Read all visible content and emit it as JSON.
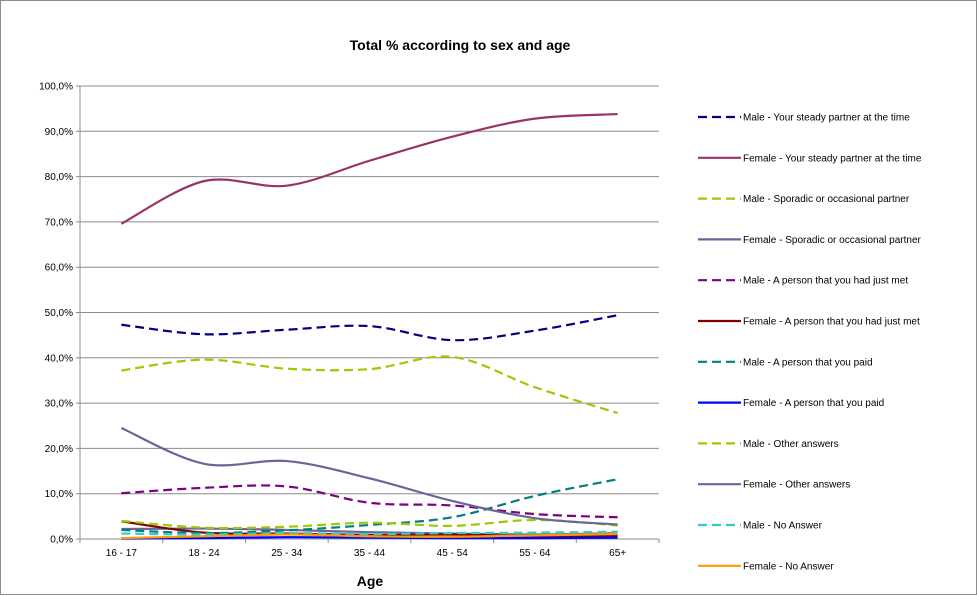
{
  "chart_data": {
    "type": "line",
    "title": "Total % according to sex and age",
    "xlabel": "Age",
    "ylabel": "",
    "categories": [
      "16 - 17",
      "18 - 24",
      "25 - 34",
      "35 - 44",
      "45 - 54",
      "55 - 64",
      "65+"
    ],
    "ylim": [
      0,
      100
    ],
    "yticks": [
      "0,0%",
      "10,0%",
      "20,0%",
      "30,0%",
      "40,0%",
      "50,0%",
      "60,0%",
      "70,0%",
      "80,0%",
      "90,0%",
      "100,0%"
    ],
    "grid": "horizontal",
    "legend_position": "right",
    "series": [
      {
        "name": "Male - Your steady partner at the time",
        "color": "#000080",
        "dash": true,
        "values": [
          47.3,
          45.2,
          46.2,
          47.0,
          43.9,
          46.0,
          49.4
        ]
      },
      {
        "name": "Female - Your steady partner at the time",
        "color": "#993366",
        "dash": false,
        "values": [
          69.6,
          79.0,
          78.0,
          83.5,
          88.8,
          92.8,
          93.8
        ]
      },
      {
        "name": "Male - Sporadic or occasional partner",
        "color": "#99CC00",
        "dash": true,
        "values": [
          37.2,
          39.6,
          37.6,
          37.5,
          40.2,
          33.5,
          27.8
        ]
      },
      {
        "name": "Female - Sporadic or occasional partner",
        "color": "#666699",
        "dash": false,
        "values": [
          2.2,
          2.3,
          2.0,
          1.5,
          1.2,
          1.0,
          1.3
        ]
      },
      {
        "name": "Male - A person that you had just met",
        "color": "#800080",
        "dash": true,
        "values": [
          10.1,
          11.3,
          11.6,
          8.0,
          7.4,
          5.5,
          4.8
        ]
      },
      {
        "name": "Female - A person that you had just met",
        "color": "#800000",
        "dash": false,
        "values": [
          3.9,
          1.4,
          1.2,
          0.9,
          1.0,
          0.6,
          0.7
        ]
      },
      {
        "name": "Male - A person that you paid",
        "color": "#008080",
        "dash": true,
        "values": [
          2.0,
          1.3,
          1.9,
          3.1,
          4.8,
          9.5,
          13.2
        ]
      },
      {
        "name": "Female - A person that you paid",
        "color": "#0000FF",
        "dash": false,
        "values": [
          0.1,
          0.2,
          0.4,
          0.3,
          0.2,
          0.2,
          0.3
        ]
      },
      {
        "name": "Male - Other answers",
        "color": "#99CC00",
        "dash": true,
        "values": [
          4.0,
          2.5,
          2.7,
          3.6,
          2.9,
          4.2,
          3.0
        ]
      },
      {
        "name": "Female - Other answers",
        "color": "#666699",
        "dash": false,
        "values": [
          24.5,
          16.6,
          17.2,
          13.4,
          8.4,
          4.6,
          3.2
        ]
      },
      {
        "name": "Male - No Answer",
        "color": "#33CCCC",
        "dash": true,
        "values": [
          1.2,
          1.0,
          1.3,
          1.1,
          1.3,
          1.4,
          1.6
        ]
      },
      {
        "name": "Female - No Answer",
        "color": "#FF9900",
        "dash": false,
        "values": [
          0.2,
          0.6,
          1.0,
          0.6,
          0.5,
          0.8,
          1.1
        ]
      }
    ]
  }
}
